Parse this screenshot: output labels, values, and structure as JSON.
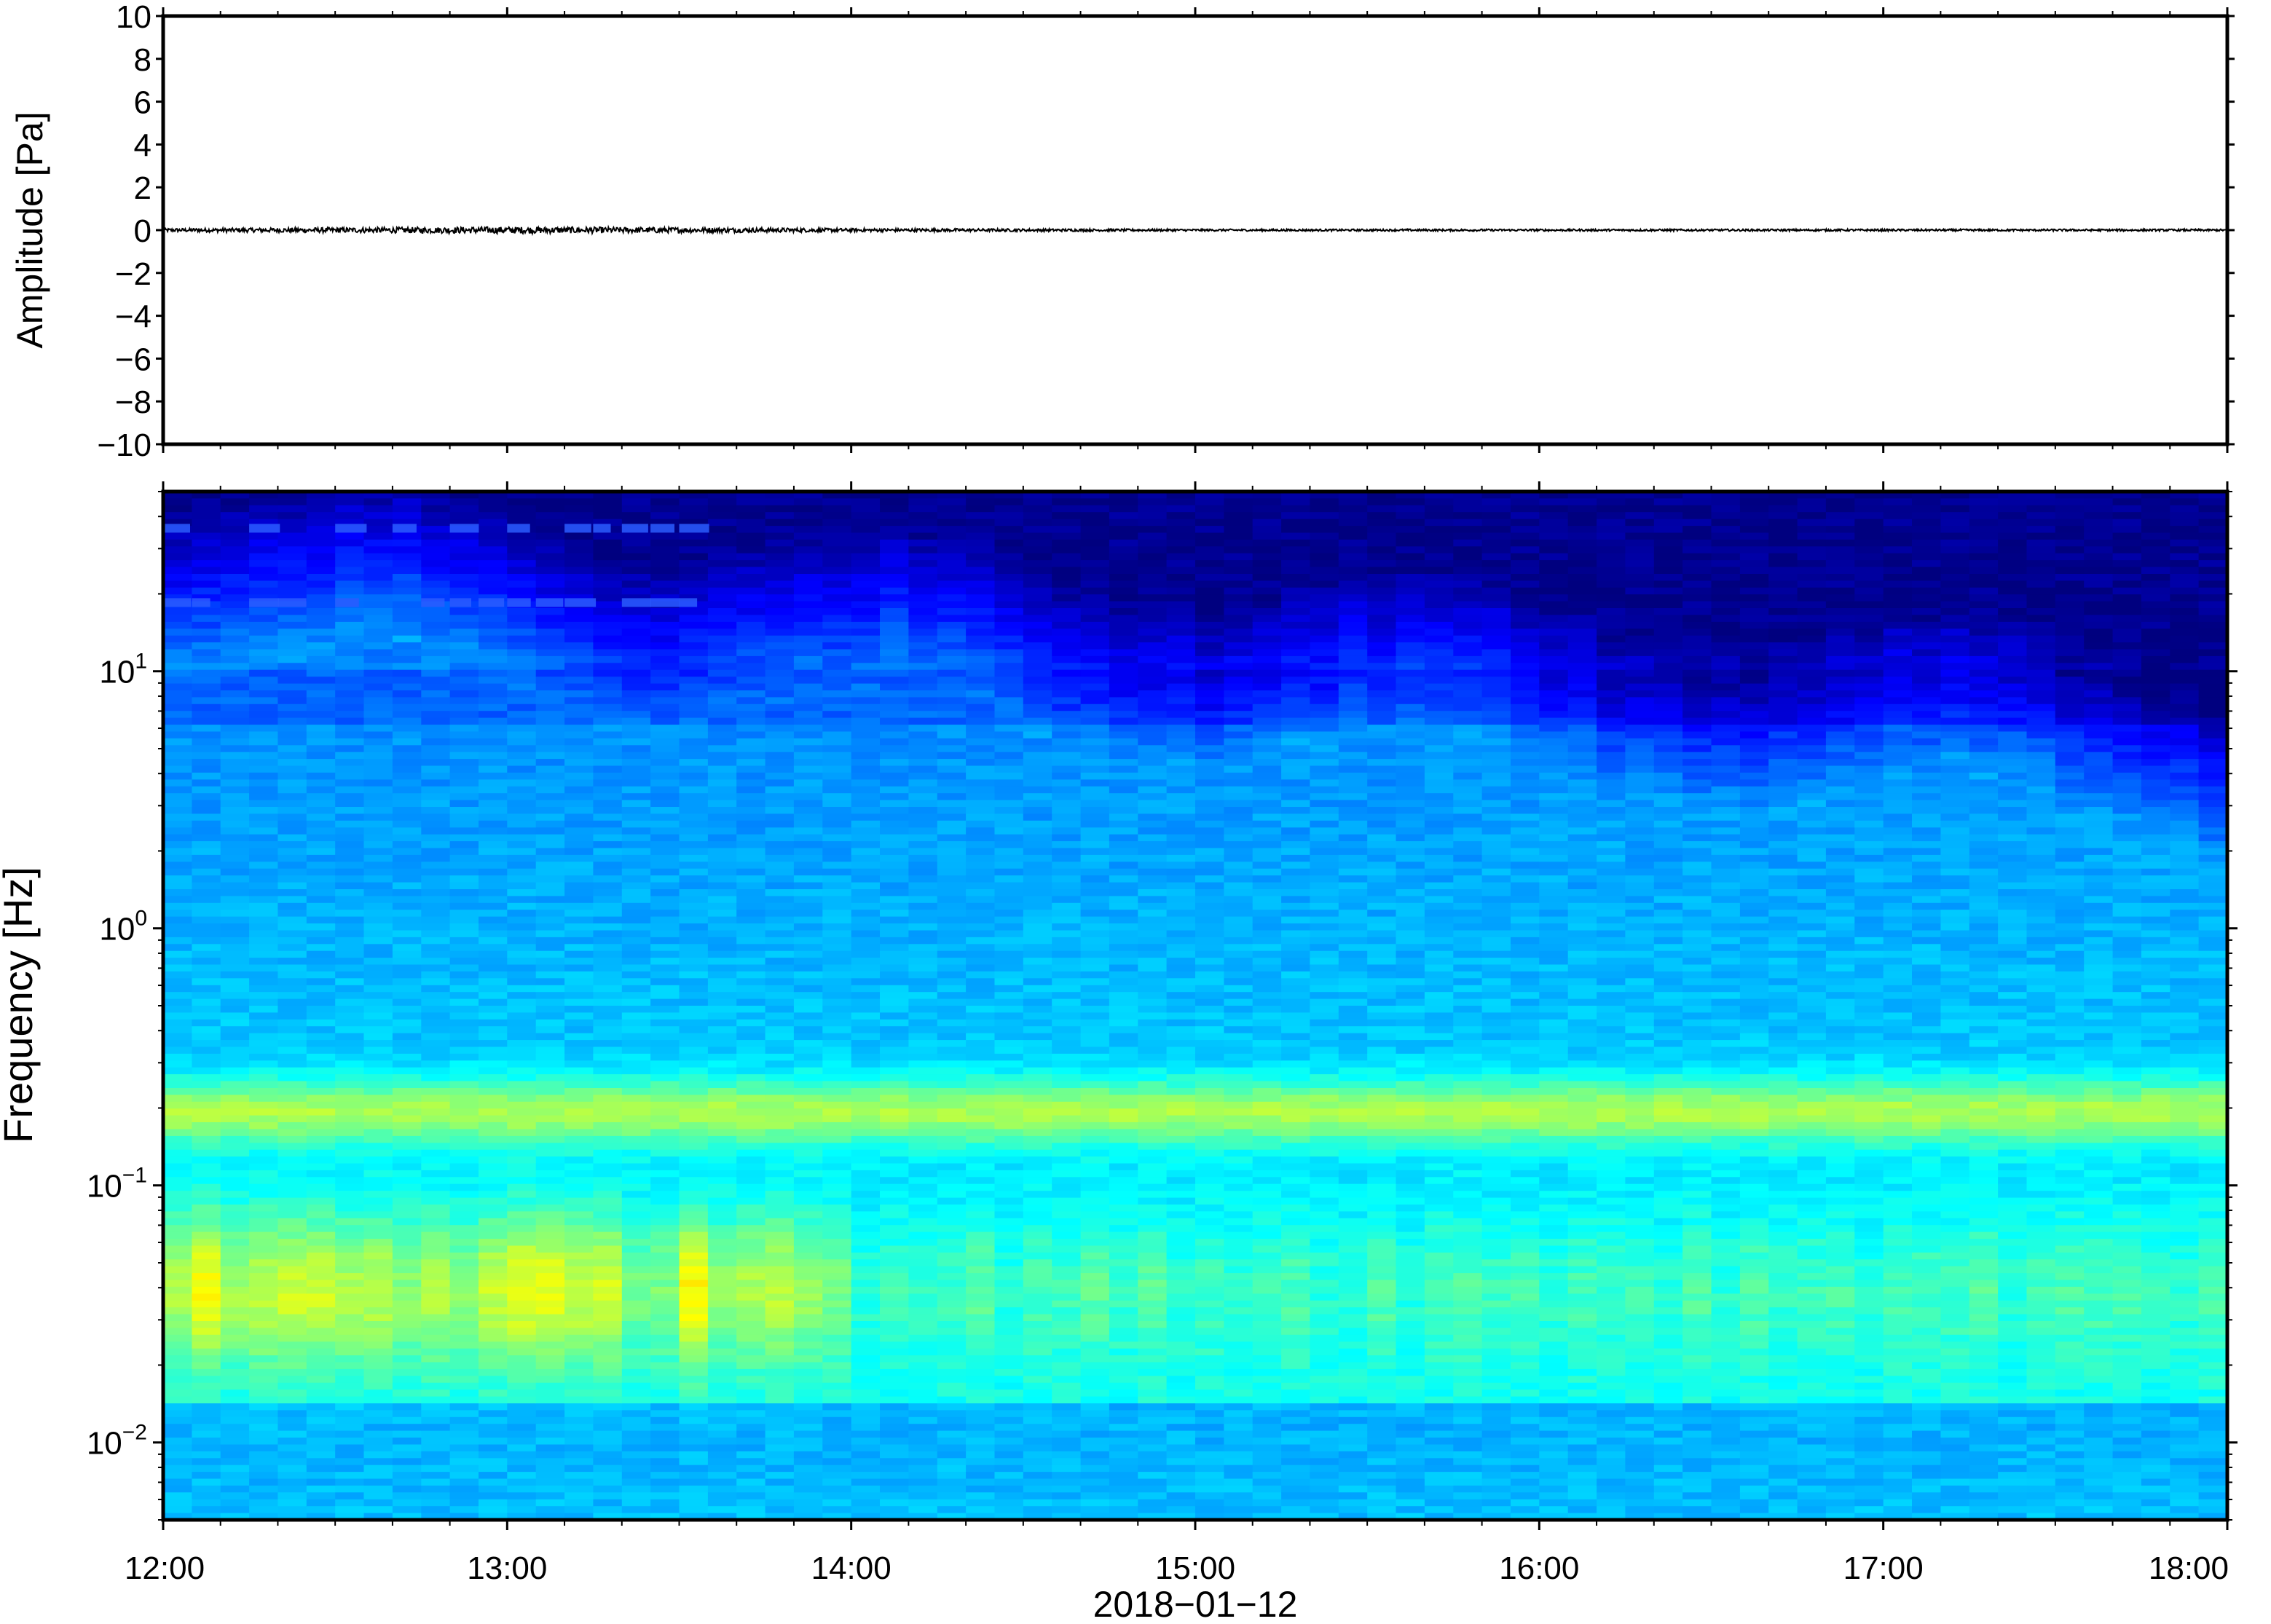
{
  "chart_data": [
    {
      "type": "line",
      "title": "",
      "xlabel": "",
      "ylabel": "Amplitude [Pa]",
      "ylim": [
        -10,
        10
      ],
      "y_ticks": [
        10,
        8,
        6,
        4,
        2,
        0,
        -2,
        -4,
        -6,
        -8,
        -10
      ],
      "y_tick_labels": [
        "10",
        "8",
        "6",
        "4",
        "2",
        "0",
        "−2",
        "−4",
        "−6",
        "−8",
        "−10"
      ],
      "x_range": [
        "12:00",
        "18:00"
      ],
      "series": [
        {
          "description": "pressure trace",
          "x": [
            "12:00",
            "13:00",
            "13:30",
            "14:00",
            "15:00",
            "16:00",
            "17:00",
            "18:00"
          ],
          "y": [
            0.05,
            0.1,
            0.08,
            0.05,
            0.03,
            0.03,
            0.03,
            0.03
          ],
          "peak_abs_approx": 0.15
        }
      ],
      "line_color": "#000000"
    },
    {
      "type": "heatmap",
      "title": "",
      "xlabel": "2018−01−12",
      "ylabel": "Frequency [Hz]",
      "y_scale": "log",
      "ylim": [
        0.005,
        50
      ],
      "y_ticks": [
        0.01,
        0.1,
        1,
        10
      ],
      "y_tick_labels": [
        {
          "base": "10",
          "exp": "−2"
        },
        {
          "base": "10",
          "exp": "−1"
        },
        {
          "base": "10",
          "exp": "0"
        },
        {
          "base": "10",
          "exp": "1"
        }
      ],
      "x_ticks": [
        "12:00",
        "13:00",
        "14:00",
        "15:00",
        "16:00",
        "17:00",
        "18:00"
      ],
      "colormap": [
        "#00007f",
        "#0000ff",
        "#007fff",
        "#00ffff",
        "#7fff7f",
        "#ffff00",
        "#ff7f00"
      ],
      "features": [
        {
          "name": "microseism band",
          "freq_hz": [
            0.15,
            0.25
          ],
          "level": "high",
          "color": "#f2f07a"
        },
        {
          "name": "low frequency energy",
          "freq_hz": [
            0.02,
            0.08
          ],
          "time": [
            "12:00",
            "14:00"
          ],
          "level": "high",
          "color": "#f5c065"
        },
        {
          "name": "high frequency lines",
          "freq_hz": [
            18,
            36
          ],
          "time": [
            "12:00",
            "13:30"
          ],
          "level": "medium",
          "color": "#2a5cff"
        },
        {
          "name": "upper band background",
          "freq_hz": [
            10,
            50
          ],
          "level": "low",
          "color": "#00007f"
        }
      ],
      "shared_x_axis": [
        "12:00",
        "18:00"
      ]
    }
  ]
}
